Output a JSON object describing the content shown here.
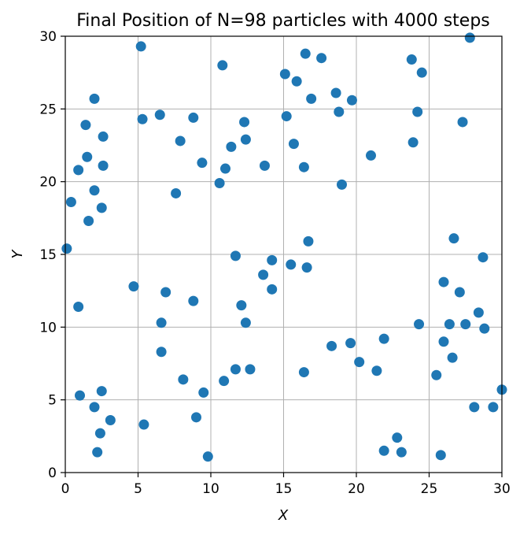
{
  "chart_data": {
    "type": "scatter",
    "title": "Final Position of N=98 particles with 4000 steps",
    "xlabel": "X",
    "ylabel": "Y",
    "xlim": [
      0,
      30
    ],
    "ylim": [
      0,
      30
    ],
    "xticks": [
      0,
      5,
      10,
      15,
      20,
      25,
      30
    ],
    "yticks": [
      0,
      5,
      10,
      15,
      20,
      25,
      30
    ],
    "x_tick_labels": [
      "0",
      "5",
      "10",
      "15",
      "20",
      "25",
      "30"
    ],
    "y_tick_labels": [
      "0",
      "5",
      "10",
      "15",
      "20",
      "25",
      "30"
    ],
    "grid": true,
    "marker_color": "#1f77b4",
    "points": [
      [
        0.1,
        15.4
      ],
      [
        0.4,
        18.6
      ],
      [
        0.9,
        20.8
      ],
      [
        0.9,
        11.4
      ],
      [
        1.0,
        5.3
      ],
      [
        1.4,
        23.9
      ],
      [
        1.5,
        21.7
      ],
      [
        1.6,
        17.3
      ],
      [
        2.0,
        25.7
      ],
      [
        2.0,
        19.4
      ],
      [
        2.0,
        4.5
      ],
      [
        2.2,
        1.4
      ],
      [
        2.4,
        2.7
      ],
      [
        2.5,
        18.2
      ],
      [
        2.5,
        5.6
      ],
      [
        2.6,
        21.1
      ],
      [
        2.6,
        23.1
      ],
      [
        3.1,
        3.6
      ],
      [
        4.7,
        12.8
      ],
      [
        5.2,
        29.3
      ],
      [
        5.3,
        24.3
      ],
      [
        5.4,
        3.3
      ],
      [
        6.5,
        24.6
      ],
      [
        6.6,
        10.3
      ],
      [
        6.6,
        8.3
      ],
      [
        6.9,
        12.4
      ],
      [
        7.6,
        19.2
      ],
      [
        7.9,
        22.8
      ],
      [
        8.1,
        6.4
      ],
      [
        8.8,
        24.4
      ],
      [
        8.8,
        11.8
      ],
      [
        9.0,
        3.8
      ],
      [
        9.4,
        21.3
      ],
      [
        9.5,
        5.5
      ],
      [
        9.8,
        1.1
      ],
      [
        10.6,
        19.9
      ],
      [
        10.8,
        28.0
      ],
      [
        10.9,
        6.3
      ],
      [
        11.0,
        20.9
      ],
      [
        11.4,
        22.4
      ],
      [
        11.7,
        14.9
      ],
      [
        11.7,
        7.1
      ],
      [
        12.1,
        11.5
      ],
      [
        12.3,
        24.1
      ],
      [
        12.4,
        22.9
      ],
      [
        12.4,
        10.3
      ],
      [
        12.7,
        7.1
      ],
      [
        13.6,
        13.6
      ],
      [
        13.7,
        21.1
      ],
      [
        14.2,
        14.6
      ],
      [
        14.2,
        12.6
      ],
      [
        15.1,
        27.4
      ],
      [
        15.2,
        24.5
      ],
      [
        15.5,
        14.3
      ],
      [
        15.7,
        22.6
      ],
      [
        15.9,
        26.9
      ],
      [
        16.4,
        21.0
      ],
      [
        16.4,
        6.9
      ],
      [
        16.5,
        28.8
      ],
      [
        16.6,
        14.1
      ],
      [
        16.7,
        15.9
      ],
      [
        16.9,
        25.7
      ],
      [
        17.6,
        28.5
      ],
      [
        18.3,
        8.7
      ],
      [
        18.6,
        26.1
      ],
      [
        18.8,
        24.8
      ],
      [
        19.0,
        19.8
      ],
      [
        19.6,
        8.9
      ],
      [
        19.7,
        25.6
      ],
      [
        20.2,
        7.6
      ],
      [
        21.0,
        21.8
      ],
      [
        21.4,
        7.0
      ],
      [
        21.9,
        9.2
      ],
      [
        21.9,
        1.5
      ],
      [
        22.8,
        2.4
      ],
      [
        23.1,
        1.4
      ],
      [
        23.8,
        28.4
      ],
      [
        23.9,
        22.7
      ],
      [
        24.2,
        24.8
      ],
      [
        24.3,
        10.2
      ],
      [
        24.5,
        27.5
      ],
      [
        25.5,
        6.7
      ],
      [
        25.8,
        1.2
      ],
      [
        26.0,
        13.1
      ],
      [
        26.0,
        9.0
      ],
      [
        26.4,
        10.2
      ],
      [
        26.6,
        7.9
      ],
      [
        26.7,
        16.1
      ],
      [
        27.1,
        12.4
      ],
      [
        27.3,
        24.1
      ],
      [
        27.5,
        10.2
      ],
      [
        27.8,
        29.9
      ],
      [
        28.1,
        4.5
      ],
      [
        28.4,
        11.0
      ],
      [
        28.7,
        14.8
      ],
      [
        28.8,
        9.9
      ],
      [
        29.4,
        4.5
      ],
      [
        30.0,
        5.7
      ]
    ]
  }
}
